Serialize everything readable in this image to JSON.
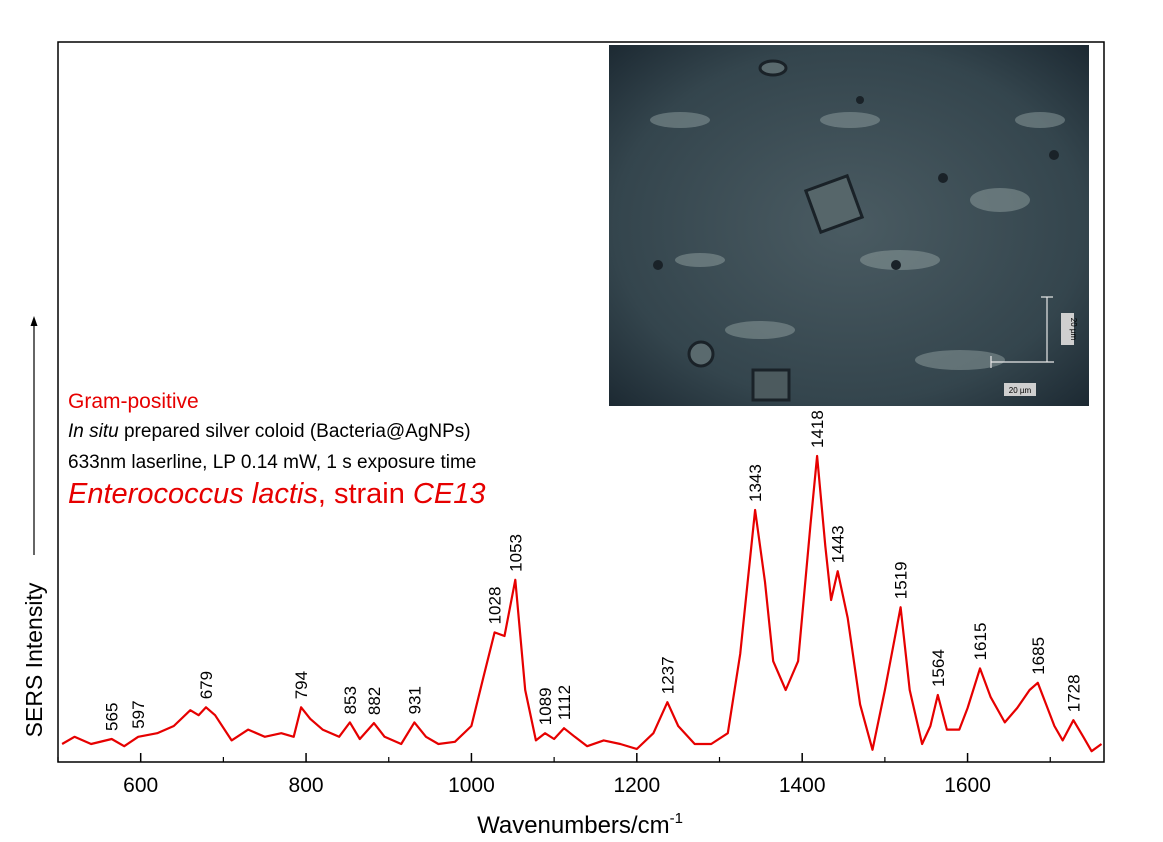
{
  "chart_data": {
    "type": "line",
    "xlabel": {
      "text": "Wavenumbers/cm",
      "sup": "-1"
    },
    "ylabel": "SERS Intensity",
    "xlim": [
      500,
      1765
    ],
    "ylim": [
      0,
      100
    ],
    "xticks": [
      600,
      800,
      1000,
      1200,
      1400,
      1600
    ],
    "xminor": [
      500,
      700,
      900,
      1100,
      1300,
      1500,
      1700
    ],
    "series": [
      {
        "color": "#e60000",
        "x": [
          505,
          520,
          540,
          565,
          580,
          597,
          620,
          640,
          660,
          670,
          679,
          690,
          710,
          730,
          750,
          770,
          785,
          794,
          805,
          820,
          840,
          853,
          865,
          882,
          895,
          915,
          931,
          945,
          960,
          980,
          1000,
          1015,
          1028,
          1040,
          1053,
          1065,
          1078,
          1089,
          1100,
          1112,
          1125,
          1140,
          1160,
          1180,
          1200,
          1220,
          1237,
          1250,
          1270,
          1290,
          1310,
          1325,
          1343,
          1355,
          1365,
          1380,
          1395,
          1410,
          1418,
          1428,
          1435,
          1443,
          1455,
          1470,
          1485,
          1500,
          1510,
          1519,
          1530,
          1545,
          1555,
          1564,
          1575,
          1590,
          1600,
          1615,
          1628,
          1645,
          1660,
          1675,
          1685,
          1695,
          1705,
          1715,
          1728,
          1740,
          1750,
          1762
        ],
        "values": [
          2.5,
          3.5,
          2.5,
          3.2,
          2.2,
          3.5,
          4,
          5,
          7.2,
          6.5,
          7.6,
          6.5,
          3,
          4.5,
          3.5,
          4,
          3.5,
          7.6,
          6,
          4.5,
          3.5,
          5.5,
          3.2,
          5.4,
          3.5,
          2.5,
          5.5,
          3.5,
          2.5,
          2.8,
          5,
          12,
          18,
          17.5,
          25.3,
          10,
          3,
          4,
          3.2,
          4.7,
          3.5,
          2.2,
          3,
          2.5,
          1.8,
          4,
          8.3,
          5,
          2.5,
          2.5,
          4,
          15,
          35,
          25,
          14,
          10,
          14,
          33,
          42.5,
          30,
          22.5,
          26.5,
          20,
          8,
          1.7,
          10,
          16,
          21.5,
          10,
          2.5,
          5,
          9.3,
          4.5,
          4.5,
          7.5,
          13,
          9,
          5.5,
          7.5,
          10,
          11,
          8,
          5,
          3,
          5.8,
          3.5,
          1.5,
          2.5
        ]
      }
    ],
    "peak_labels": [
      565,
      597,
      679,
      794,
      853,
      882,
      931,
      1028,
      1053,
      1089,
      1112,
      1237,
      1343,
      1418,
      1443,
      1519,
      1564,
      1615,
      1685,
      1728
    ],
    "legend_text": {
      "group": "Gram-positive",
      "method": [
        "In situ",
        " prepared silver coloid (Bacteria@AgNPs)"
      ],
      "conditions": "633nm laserline, LP 0.14 mW, 1 s exposure time",
      "species": [
        "Enterococcus lactis",
        ", strain ",
        "CE13"
      ]
    }
  },
  "inset": {
    "scale_labels": [
      "20 µm",
      "20 µm"
    ]
  }
}
